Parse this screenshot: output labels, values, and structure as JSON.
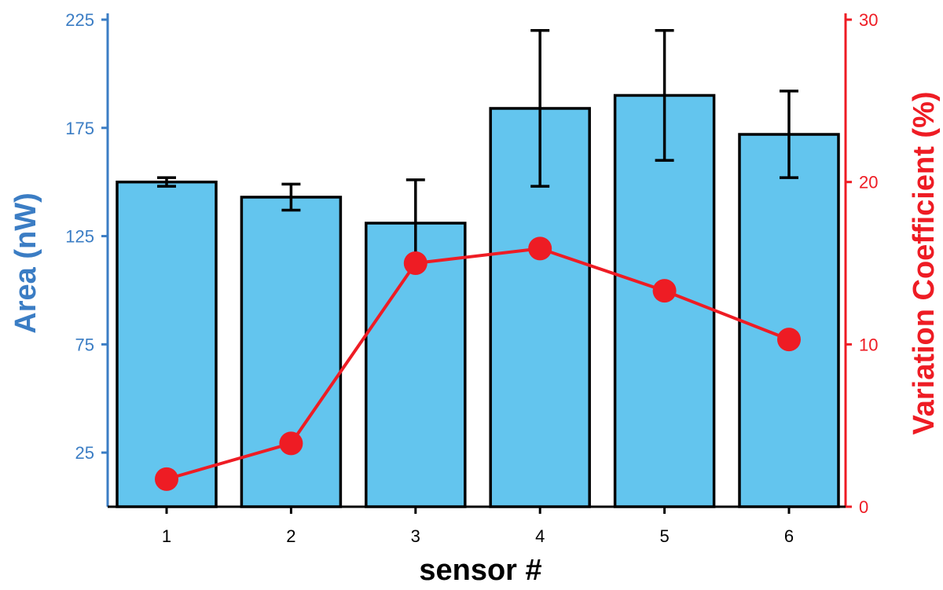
{
  "chart_data": {
    "type": "bar",
    "categories": [
      "1",
      "2",
      "3",
      "4",
      "5",
      "6"
    ],
    "xlabel": "sensor #",
    "ylabel": "Area (nW)",
    "y2label": "Variation Coefficient (%)",
    "ylim": [
      0,
      225
    ],
    "y2lim": [
      0,
      30
    ],
    "yticks": [
      "25",
      "75",
      "125",
      "175",
      "225"
    ],
    "y2ticks": [
      "0",
      "10",
      "20",
      "30"
    ],
    "series": [
      {
        "axis": "left",
        "type": "bar",
        "values": [
          150,
          143,
          131,
          184,
          190,
          172
        ],
        "errors": [
          2,
          6,
          20,
          36,
          30,
          20
        ],
        "color": "#63c5ee"
      },
      {
        "axis": "right",
        "type": "line",
        "values": [
          1.7,
          3.9,
          15.0,
          15.9,
          13.3,
          10.3
        ],
        "color": "#ee1c24"
      }
    ],
    "colors": {
      "left_axis": "#3b7dc4",
      "right_axis": "#ee1c24",
      "bar_edge": "#000000"
    }
  }
}
